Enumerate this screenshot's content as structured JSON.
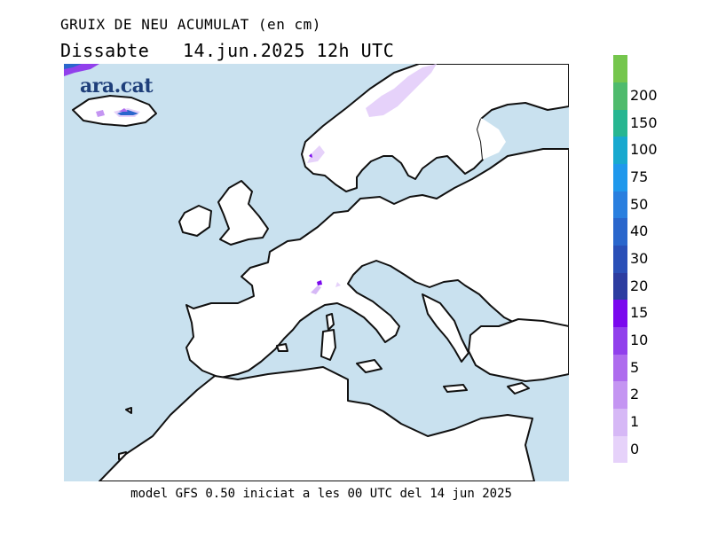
{
  "header": {
    "title": "GRUIX DE NEU ACUMULAT (en cm)",
    "day": "Dissabte",
    "datetime": "14.jun.2025 12h UTC"
  },
  "footer": "model GFS 0.50 iniciat a les 00 UTC del 14 jun 2025",
  "logo": "ara.cat",
  "legend": {
    "levels": [
      {
        "label": "0",
        "color": "#e6d2fa"
      },
      {
        "label": "1",
        "color": "#d6b8f6"
      },
      {
        "label": "2",
        "color": "#c495f2"
      },
      {
        "label": "5",
        "color": "#ae6cee"
      },
      {
        "label": "10",
        "color": "#9140ec"
      },
      {
        "label": "15",
        "color": "#7a08ee"
      },
      {
        "label": "20",
        "color": "#2c3ca0"
      },
      {
        "label": "30",
        "color": "#2a4fb7"
      },
      {
        "label": "40",
        "color": "#2a66cc"
      },
      {
        "label": "50",
        "color": "#2a7fdf"
      },
      {
        "label": "75",
        "color": "#1f98ec"
      },
      {
        "label": "100",
        "color": "#18a9cf"
      },
      {
        "label": "150",
        "color": "#27b691"
      },
      {
        "label": "200",
        "color": "#4fbb6d"
      },
      {
        "label": "",
        "color": "#75c64d"
      }
    ]
  },
  "map_colors": {
    "sea": "#c9e1ef",
    "land": "#ffffff",
    "coast": "#111111"
  }
}
